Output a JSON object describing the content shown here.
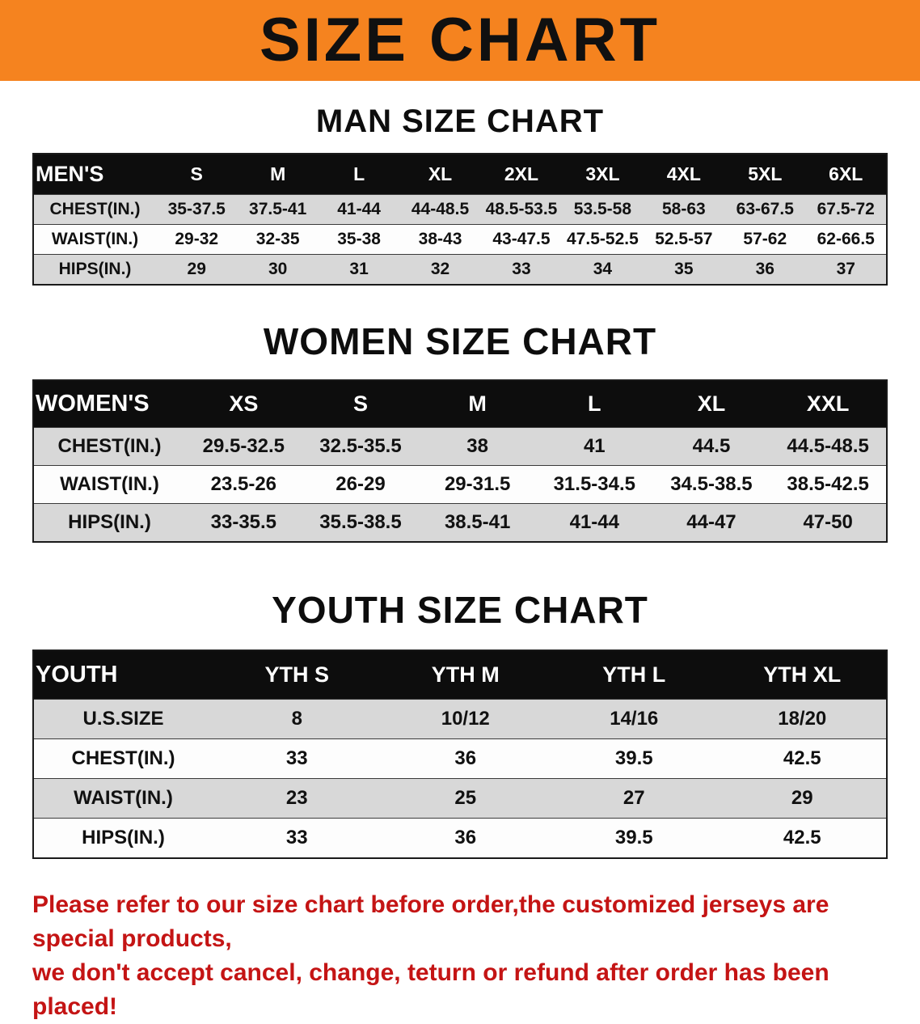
{
  "banner": {
    "title": "SIZE CHART",
    "bg_color": "#f5831f"
  },
  "sections": [
    {
      "id": "men",
      "heading": "MAN SIZE CHART",
      "table": {
        "header": [
          "MEN'S",
          "S",
          "M",
          "L",
          "XL",
          "2XL",
          "3XL",
          "4XL",
          "5XL",
          "6XL"
        ],
        "rows": [
          [
            "CHEST(IN.)",
            "35-37.5",
            "37.5-41",
            "41-44",
            "44-48.5",
            "48.5-53.5",
            "53.5-58",
            "58-63",
            "63-67.5",
            "67.5-72"
          ],
          [
            "WAIST(IN.)",
            "29-32",
            "32-35",
            "35-38",
            "38-43",
            "43-47.5",
            "47.5-52.5",
            "52.5-57",
            "57-62",
            "62-66.5"
          ],
          [
            "HIPS(IN.)",
            "29",
            "30",
            "31",
            "32",
            "33",
            "34",
            "35",
            "36",
            "37"
          ]
        ]
      }
    },
    {
      "id": "women",
      "heading": "WOMEN SIZE CHART",
      "table": {
        "header": [
          "WOMEN'S",
          "XS",
          "S",
          "M",
          "L",
          "XL",
          "XXL"
        ],
        "rows": [
          [
            "CHEST(IN.)",
            "29.5-32.5",
            "32.5-35.5",
            "38",
            "41",
            "44.5",
            "44.5-48.5"
          ],
          [
            "WAIST(IN.)",
            "23.5-26",
            "26-29",
            "29-31.5",
            "31.5-34.5",
            "34.5-38.5",
            "38.5-42.5"
          ],
          [
            "HIPS(IN.)",
            "33-35.5",
            "35.5-38.5",
            "38.5-41",
            "41-44",
            "44-47",
            "47-50"
          ]
        ]
      }
    },
    {
      "id": "youth",
      "heading": "YOUTH SIZE CHART",
      "table": {
        "header": [
          "YOUTH",
          "YTH S",
          "YTH M",
          "YTH L",
          "YTH XL"
        ],
        "rows": [
          [
            "U.S.SIZE",
            "8",
            "10/12",
            "14/16",
            "18/20"
          ],
          [
            "CHEST(IN.)",
            "33",
            "36",
            "39.5",
            "42.5"
          ],
          [
            "WAIST(IN.)",
            "23",
            "25",
            "27",
            "29"
          ],
          [
            "HIPS(IN.)",
            "33",
            "36",
            "39.5",
            "42.5"
          ]
        ]
      }
    }
  ],
  "disclaimer": {
    "line1": "Please refer to our size chart before order,the customized jerseys are special products,",
    "line2": "we don't accept cancel, change, teturn or refund after order has been placed!",
    "color": "#c41414"
  }
}
